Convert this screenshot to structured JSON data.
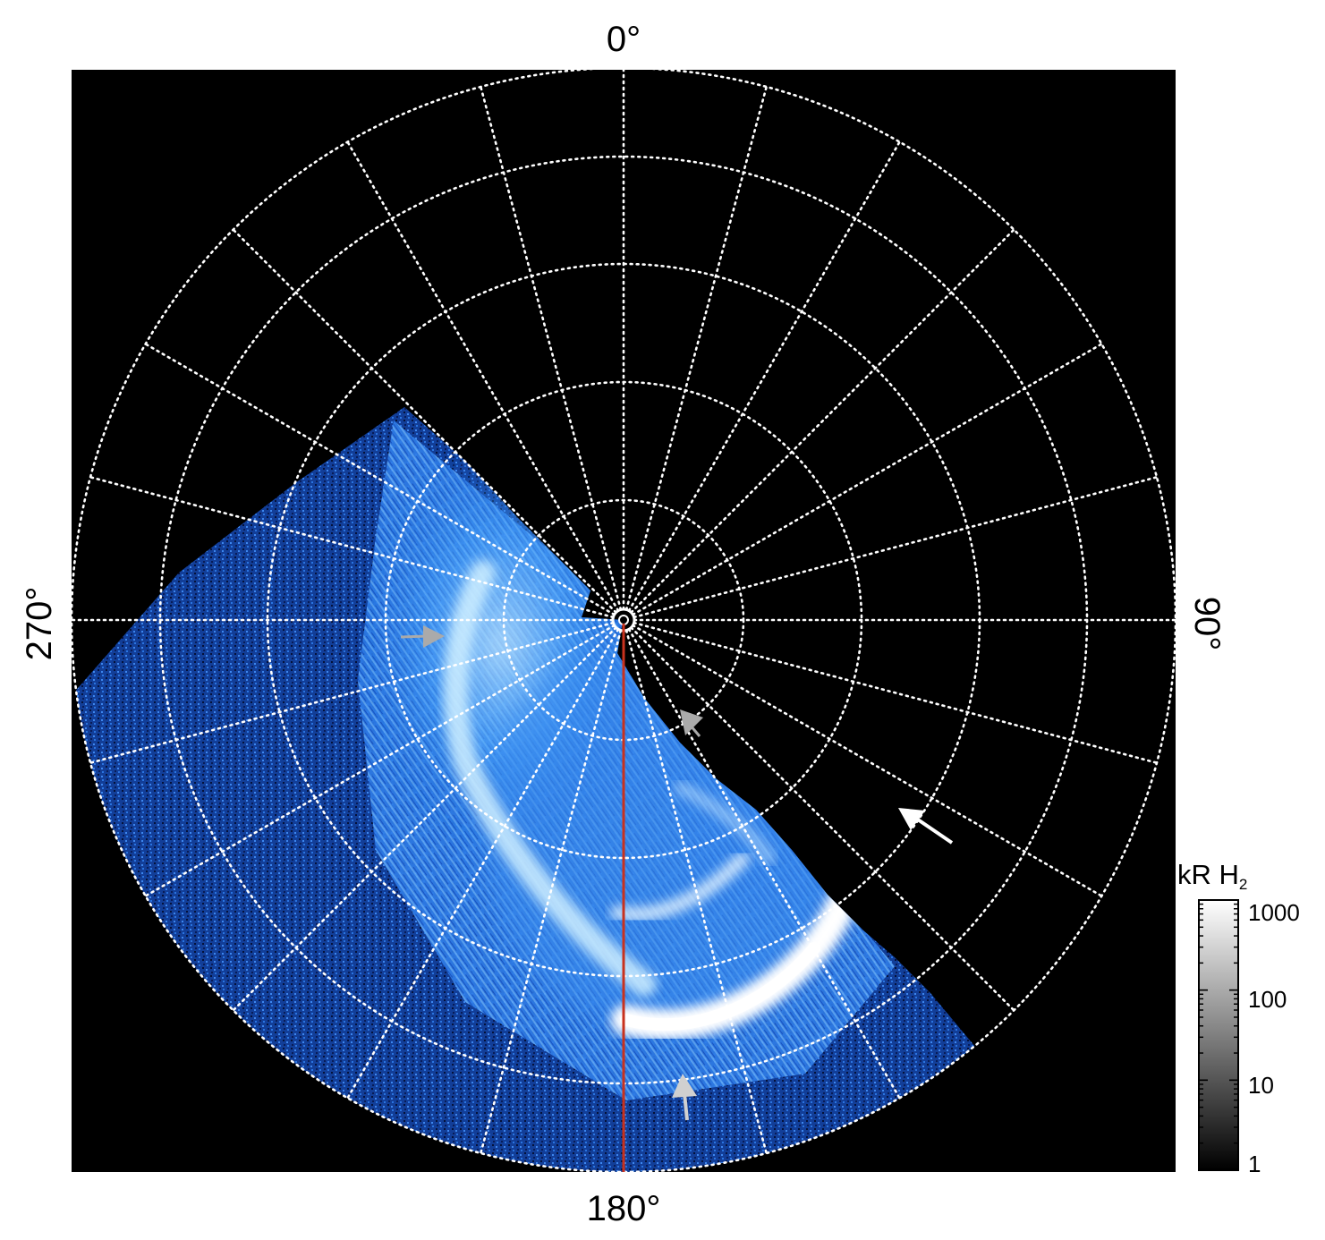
{
  "orientation_labels": {
    "top": "0°",
    "right": "90°",
    "bottom": "180°",
    "left": "270°"
  },
  "colorbar": {
    "unit_prefix": "kR H",
    "unit_subscript": "2",
    "scale": "log",
    "ticks": [
      "1000",
      "100",
      "10",
      "1"
    ],
    "gradient": [
      "#000000",
      "#ffffff"
    ]
  },
  "colors": {
    "background": "#000000",
    "grid": "#ffffff",
    "emission_dark": "#0a2a78",
    "emission_mid": "#1f6fe0",
    "emission_bright": "#8fd0ff",
    "emission_peak": "#ffffff",
    "meridian_line": "#c8321e",
    "arrow_white": "#ffffff",
    "arrow_gray": "#aaaaaa"
  }
}
